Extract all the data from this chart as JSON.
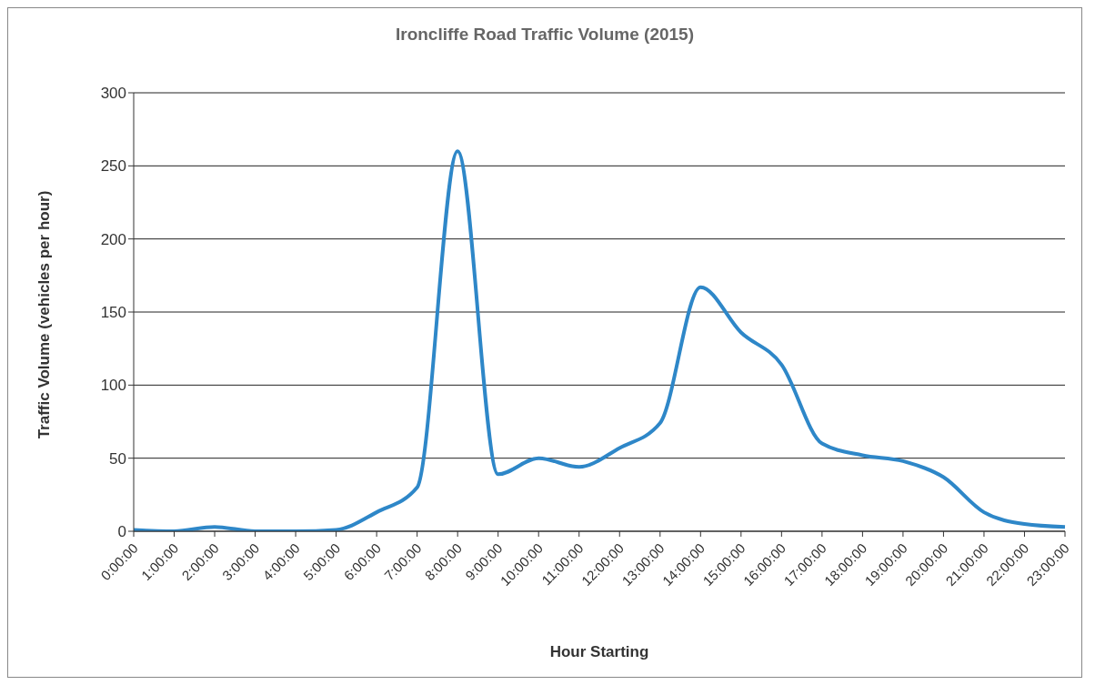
{
  "chart_data": {
    "type": "line",
    "title": "Ironcliffe Road Traffic Volume (2015)",
    "xlabel": "Hour Starting",
    "ylabel": "Traffic Volume (vehicles per hour)",
    "categories": [
      "0:00:00",
      "1:00:00",
      "2:00:00",
      "3:00:00",
      "4:00:00",
      "5:00:00",
      "6:00:00",
      "7:00:00",
      "8:00:00",
      "9:00:00",
      "10:00:00",
      "11:00:00",
      "12:00:00",
      "13:00:00",
      "14:00:00",
      "15:00:00",
      "16:00:00",
      "17:00:00",
      "18:00:00",
      "19:00:00",
      "20:00:00",
      "21:00:00",
      "22:00:00",
      "23:00:00"
    ],
    "values": [
      1,
      0,
      3,
      0,
      0,
      1,
      13,
      30,
      260,
      39,
      50,
      44,
      57,
      74,
      167,
      136,
      114,
      60,
      52,
      48,
      37,
      13,
      5,
      3
    ],
    "color": "#2e87c8",
    "ylim": [
      0,
      300
    ],
    "yticks": [
      0,
      50,
      100,
      150,
      200,
      250,
      300
    ],
    "grid": "y",
    "marker": "none",
    "line_style": "solid"
  }
}
